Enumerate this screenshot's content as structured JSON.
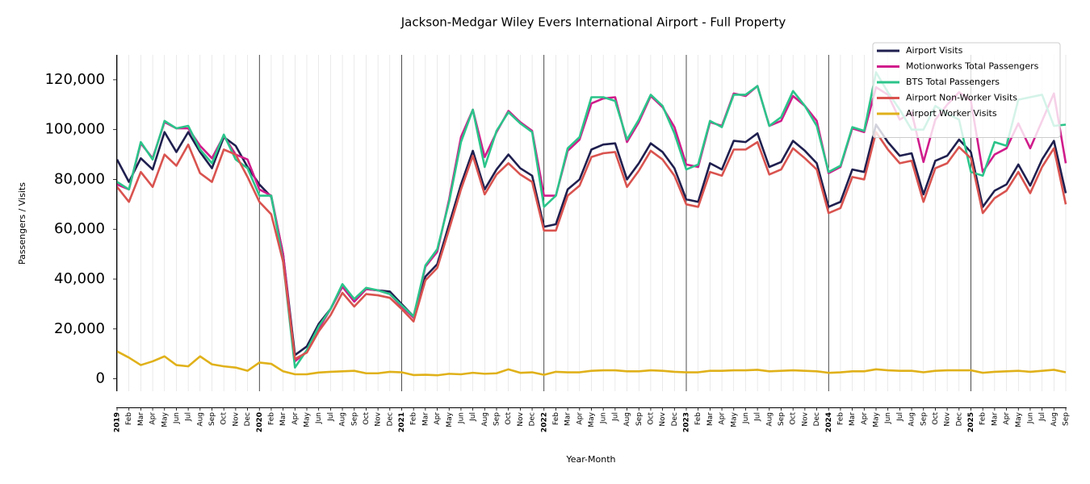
{
  "chart_data": {
    "type": "line",
    "title": "Jackson-Medgar Wiley Evers International Airport - Full Property",
    "x_label": "Year-Month",
    "y_label": "Passengers / Visits",
    "categories": [
      "2019",
      "Feb",
      "Mar",
      "Apr",
      "May",
      "Jun",
      "Jul",
      "Aug",
      "Sep",
      "Oct",
      "Nov",
      "Dec",
      "2020",
      "Feb",
      "Mar",
      "Apr",
      "May",
      "Jun",
      "Jul",
      "Aug",
      "Sep",
      "Oct",
      "Nov",
      "Dec",
      "2021",
      "Feb",
      "Mar",
      "Apr",
      "May",
      "Jun",
      "Jul",
      "Aug",
      "Sep",
      "Oct",
      "Nov",
      "Dec",
      "2022",
      "Feb",
      "Mar",
      "Apr",
      "May",
      "Jun",
      "Jul",
      "Aug",
      "Sep",
      "Oct",
      "Nov",
      "Dec",
      "2023",
      "Feb",
      "Mar",
      "Apr",
      "May",
      "Jun",
      "Jul",
      "Aug",
      "Sep",
      "Oct",
      "Nov",
      "Dec",
      "2024",
      "Feb",
      "Mar",
      "Apr",
      "May",
      "Jun",
      "Jul",
      "Aug",
      "Sep",
      "Oct",
      "Nov",
      "Dec",
      "2025",
      "Feb",
      "Mar",
      "Apr",
      "May",
      "Jun",
      "Jul",
      "Aug",
      "Sep"
    ],
    "ylim": [
      -5000,
      130000
    ],
    "yticks": [
      0,
      {
        "value": 20000,
        "label": "20,000"
      },
      {
        "value": 40000,
        "label": "40,000"
      },
      {
        "value": 60000,
        "label": "60,000"
      },
      {
        "value": 80000,
        "label": "80,000"
      },
      {
        "value": 100000,
        "label": "100,000"
      },
      {
        "value": 120000,
        "label": "120,000"
      }
    ],
    "legend": "upper right",
    "series": [
      {
        "name": "Airport Visits",
        "color": "#1f1f4f",
        "values": [
          88000,
          79000,
          88500,
          84000,
          99000,
          91000,
          99000,
          91000,
          84500,
          97000,
          93500,
          85000,
          78000,
          73000,
          50000,
          9500,
          13000,
          22000,
          28000,
          37000,
          31000,
          36000,
          35500,
          35000,
          30000,
          25000,
          41000,
          46000,
          62000,
          78000,
          91500,
          76000,
          84000,
          90000,
          84500,
          81500,
          61000,
          62000,
          76000,
          80000,
          92000,
          94000,
          94500,
          80000,
          86500,
          94500,
          91000,
          84500,
          72000,
          71000,
          86500,
          84000,
          95500,
          95000,
          98500,
          85000,
          87000,
          95500,
          91500,
          86500,
          69000,
          71000,
          84000,
          83000,
          102000,
          95000,
          89500,
          90500,
          74000,
          87500,
          89500,
          96000,
          91000,
          69000,
          75500,
          78000,
          86000,
          77500,
          88000,
          95500,
          74500
        ]
      },
      {
        "name": "Motionworks Total Passengers",
        "color": "#d01c8b",
        "values": [
          78000,
          76000,
          94500,
          88500,
          103000,
          100500,
          100500,
          93500,
          88500,
          97500,
          90000,
          88000,
          76000,
          73500,
          50000,
          7000,
          11000,
          20000,
          28000,
          37000,
          31000,
          36000,
          35500,
          34000,
          29000,
          24500,
          45000,
          51000,
          72000,
          97000,
          108000,
          89000,
          99000,
          107500,
          103000,
          99500,
          73500,
          73500,
          91500,
          96000,
          110500,
          112500,
          113000,
          95000,
          103000,
          113500,
          109000,
          101000,
          86000,
          85000,
          103000,
          101500,
          114500,
          113500,
          117500,
          101500,
          103500,
          113500,
          109500,
          103500,
          82500,
          85000,
          100500,
          99000,
          117000,
          114000,
          104000,
          107000,
          87000,
          104000,
          110000,
          115000,
          111500,
          83000,
          90000,
          92500,
          102500,
          92500,
          103500,
          114500,
          86500
        ]
      },
      {
        "name": "BTS Total Passengers",
        "color": "#2bc48a",
        "values": [
          79000,
          76000,
          95000,
          88000,
          103500,
          100500,
          101500,
          92000,
          86500,
          98000,
          88000,
          84500,
          73500,
          73500,
          47000,
          4500,
          11500,
          21000,
          28000,
          38000,
          32000,
          36500,
          35500,
          34000,
          29500,
          25000,
          45500,
          52000,
          71000,
          95000,
          108000,
          85000,
          99500,
          107000,
          102500,
          99000,
          69000,
          73500,
          92500,
          97000,
          113000,
          113000,
          111500,
          96000,
          104000,
          114000,
          109500,
          98500,
          84000,
          86000,
          103500,
          101000,
          114000,
          114000,
          117500,
          101500,
          105000,
          115500,
          109500,
          101500,
          83000,
          85500,
          101000,
          99500,
          123000,
          115000,
          108000,
          100000,
          100000,
          109500,
          106500,
          104000,
          83000,
          81500,
          95000,
          93500,
          112000,
          113000,
          114000,
          101500,
          102000
        ]
      },
      {
        "name": "Airport Non-Worker Visits",
        "color": "#d9534f",
        "values": [
          77000,
          71000,
          83000,
          77000,
          90000,
          85500,
          94000,
          82500,
          79000,
          92000,
          90000,
          81000,
          71000,
          66000,
          47000,
          8000,
          10500,
          19000,
          25500,
          34500,
          29000,
          34000,
          33500,
          32500,
          28000,
          23000,
          39500,
          44500,
          60000,
          76000,
          89500,
          74000,
          82000,
          86500,
          82000,
          79000,
          59500,
          59500,
          73500,
          77500,
          89000,
          90500,
          91000,
          77000,
          83500,
          91500,
          88000,
          81500,
          70000,
          69000,
          83000,
          81500,
          92000,
          92000,
          95000,
          82000,
          84000,
          92500,
          88500,
          84000,
          66500,
          68500,
          81000,
          80000,
          99000,
          92000,
          86500,
          87500,
          71000,
          84500,
          86500,
          93000,
          88500,
          66500,
          72500,
          75500,
          83000,
          74500,
          85000,
          92500,
          70000
        ]
      },
      {
        "name": "Airport Worker Visits",
        "color": "#e0b11a",
        "values": [
          11000,
          8500,
          5500,
          7000,
          9000,
          5500,
          5000,
          9000,
          5800,
          5000,
          4500,
          3200,
          6500,
          6000,
          3000,
          1800,
          1800,
          2500,
          2800,
          3000,
          3200,
          2200,
          2200,
          2800,
          2600,
          1500,
          1600,
          1400,
          2000,
          1800,
          2400,
          2000,
          2200,
          3800,
          2400,
          2600,
          1600,
          2800,
          2600,
          2600,
          3200,
          3400,
          3400,
          3000,
          3000,
          3400,
          3200,
          2800,
          2600,
          2600,
          3200,
          3200,
          3400,
          3400,
          3600,
          3000,
          3200,
          3400,
          3200,
          3000,
          2400,
          2600,
          3000,
          3000,
          3800,
          3400,
          3200,
          3200,
          2600,
          3200,
          3400,
          3400,
          3400,
          2400,
          2800,
          3000,
          3200,
          2800,
          3200,
          3600,
          2600
        ]
      }
    ]
  }
}
